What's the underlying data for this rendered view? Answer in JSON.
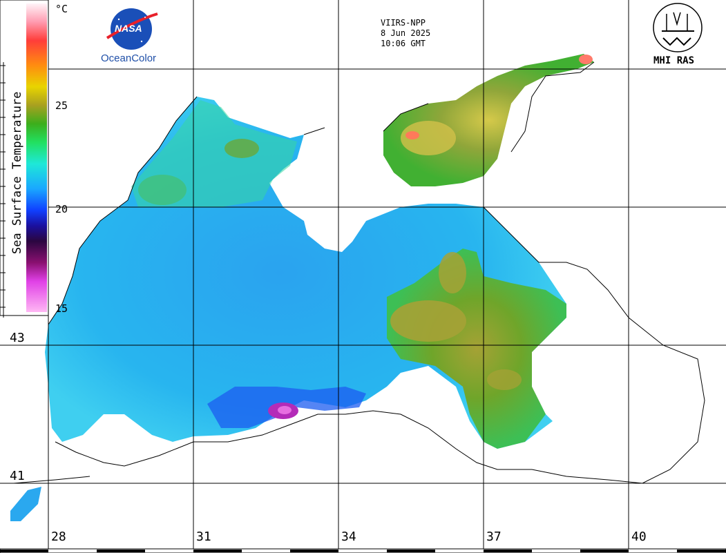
{
  "header": {
    "satellite": "VIIRS-NPP",
    "date": "8 Jun 2025",
    "time": "10:06 GMT"
  },
  "logos": {
    "nasa_label": "NASA",
    "oceancolor_label": "OceanColor",
    "mhi_label": "MHI RAS"
  },
  "colorbar": {
    "title": "Sea Surface Temperature",
    "unit": "°C",
    "ticks": [
      "25",
      "20",
      "15"
    ],
    "range": [
      15,
      30
    ],
    "colors": [
      "#ff9ff0",
      "#d24be8",
      "#80156f",
      "#2a0866",
      "#1a1ac8",
      "#1660ff",
      "#1ea0ff",
      "#1ed8f0",
      "#21f0a0",
      "#38c838",
      "#5ab41e",
      "#a0a01e",
      "#dcd800",
      "#ffb000",
      "#ff5a1e",
      "#ff2e4a",
      "#ff8ea8",
      "#fff0f4"
    ]
  },
  "axes": {
    "longitude_labels": [
      "28",
      "31",
      "34",
      "37",
      "40"
    ],
    "latitude_labels": [
      "43",
      "41"
    ]
  },
  "colors": {
    "grid": "#000000",
    "land": "#ffffff",
    "warm_sst": "#a8a03a",
    "cool_sst": "#2fa6e8"
  }
}
